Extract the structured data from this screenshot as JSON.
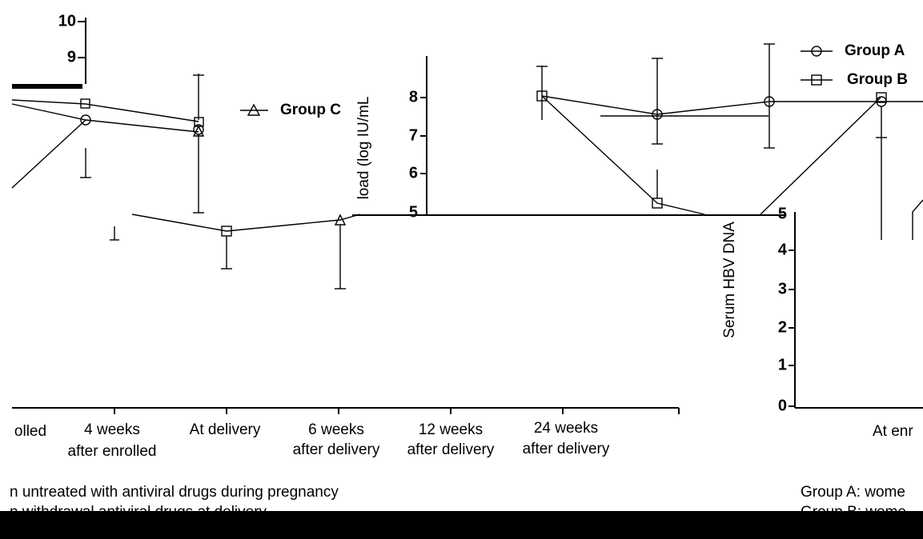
{
  "fragments": {
    "top_left_ticks": [
      "10",
      "9"
    ],
    "legend_left": [
      "Group C"
    ],
    "middle_axis_label": "load (log IU/mL",
    "middle_ticks": [
      "8",
      "7",
      "6",
      "5"
    ],
    "legend_right": [
      "Group A",
      "Group B"
    ],
    "right_axis_label": "Serum HBV DNA",
    "right_ticks": [
      "5",
      "4",
      "3",
      "2",
      "1",
      "0"
    ],
    "x_labels": [
      [
        "olled"
      ],
      [
        "4 weeks",
        "after enrolled"
      ],
      [
        "At delivery"
      ],
      [
        "6 weeks",
        "after delivery"
      ],
      [
        "12 weeks",
        "after delivery"
      ],
      [
        "24 weeks",
        "after delivery"
      ],
      [
        "At enr"
      ]
    ],
    "caption_left": [
      "n untreated with antiviral drugs during pregnancy",
      "n withdrawal antiviral drugs at delivery"
    ],
    "caption_right": [
      "Group A: wome",
      "Group B: wome"
    ]
  }
}
